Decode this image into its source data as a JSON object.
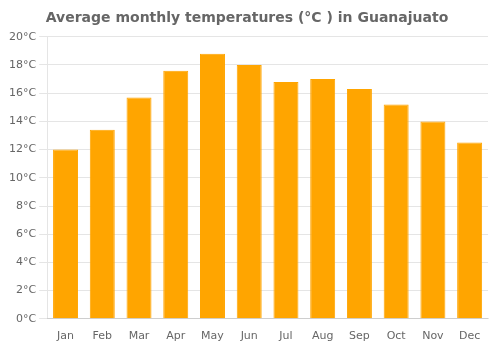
{
  "chart_data": {
    "type": "bar",
    "title": "Average monthly temperatures (°C ) in Guanajuato",
    "categories": [
      "Jan",
      "Feb",
      "Mar",
      "Apr",
      "May",
      "Jun",
      "Jul",
      "Aug",
      "Sep",
      "Oct",
      "Nov",
      "Dec"
    ],
    "values": [
      12.0,
      13.4,
      15.7,
      17.6,
      18.8,
      18.0,
      16.8,
      17.0,
      16.3,
      15.2,
      14.0,
      12.5
    ],
    "color": "#FFA500",
    "ylim": [
      0,
      20
    ],
    "yticks": [
      {
        "value": 0,
        "label": "0°C"
      },
      {
        "value": 2,
        "label": "2°C"
      },
      {
        "value": 4,
        "label": "4°C"
      },
      {
        "value": 6,
        "label": "6°C"
      },
      {
        "value": 8,
        "label": "8°C"
      },
      {
        "value": 10,
        "label": "10°C"
      },
      {
        "value": 12,
        "label": "12°C"
      },
      {
        "value": 14,
        "label": "14°C"
      },
      {
        "value": 16,
        "label": "16°C"
      },
      {
        "value": 18,
        "label": "18°C"
      },
      {
        "value": 20,
        "label": "20°C"
      }
    ],
    "grid": true
  }
}
